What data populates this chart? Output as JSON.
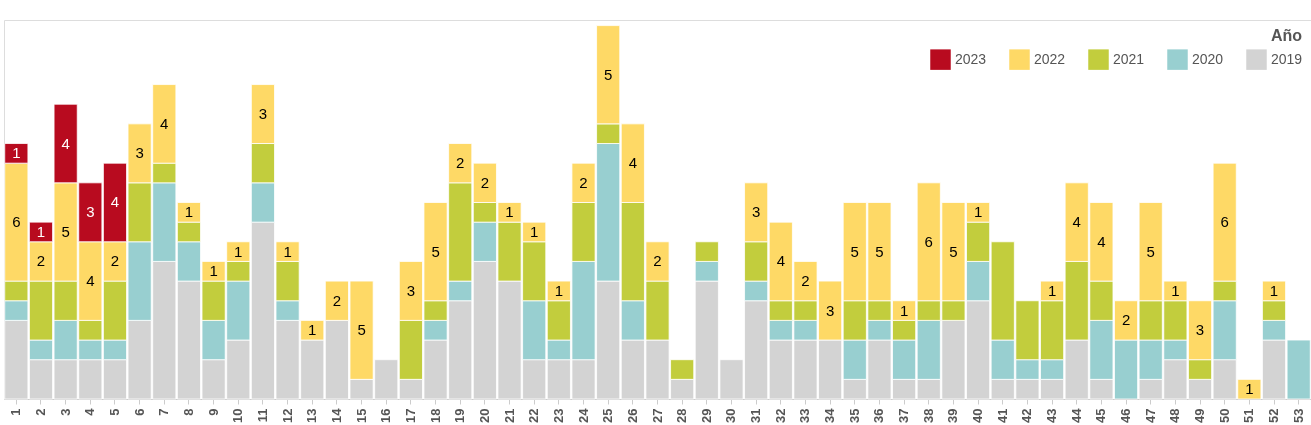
{
  "chart_data": {
    "type": "bar",
    "stacked": true,
    "legend_title": "Año",
    "legend": "top right",
    "grid": false,
    "tick_labels": "x",
    "categories": [
      "1",
      "2",
      "3",
      "4",
      "5",
      "6",
      "7",
      "8",
      "9",
      "10",
      "11",
      "12",
      "13",
      "14",
      "15",
      "16",
      "17",
      "18",
      "19",
      "20",
      "21",
      "22",
      "23",
      "24",
      "25",
      "26",
      "27",
      "28",
      "29",
      "30",
      "31",
      "32",
      "33",
      "34",
      "35",
      "36",
      "37",
      "38",
      "39",
      "40",
      "41",
      "42",
      "43",
      "44",
      "45",
      "46",
      "47",
      "48",
      "49",
      "50",
      "51",
      "52",
      "53"
    ],
    "series": [
      {
        "name": "2019",
        "color": "#d3d3d3",
        "values": [
          4,
          2,
          2,
          2,
          2,
          4,
          7,
          6,
          2,
          3,
          9,
          4,
          3,
          4,
          1,
          2,
          1,
          3,
          5,
          7,
          6,
          2,
          2,
          2,
          6,
          3,
          3,
          1,
          6,
          2,
          5,
          3,
          3,
          3,
          1,
          3,
          1,
          1,
          4,
          5,
          1,
          1,
          1,
          3,
          1,
          null,
          1,
          2,
          1,
          2,
          null,
          3,
          null
        ]
      },
      {
        "name": "2020",
        "color": "#98cfd0",
        "values": [
          1,
          1,
          2,
          1,
          1,
          4,
          4,
          2,
          2,
          3,
          2,
          1,
          null,
          null,
          null,
          null,
          null,
          1,
          1,
          2,
          null,
          3,
          1,
          5,
          7,
          2,
          null,
          null,
          1,
          null,
          1,
          1,
          1,
          null,
          2,
          1,
          2,
          3,
          null,
          2,
          2,
          1,
          1,
          null,
          3,
          3,
          2,
          1,
          null,
          3,
          null,
          1,
          3
        ]
      },
      {
        "name": "2021",
        "color": "#c2cd3d",
        "values": [
          1,
          3,
          2,
          1,
          3,
          3,
          1,
          1,
          2,
          1,
          2,
          2,
          null,
          null,
          null,
          null,
          3,
          1,
          5,
          1,
          3,
          3,
          2,
          3,
          1,
          5,
          3,
          1,
          1,
          null,
          2,
          1,
          1,
          null,
          2,
          1,
          1,
          1,
          1,
          2,
          5,
          3,
          3,
          4,
          2,
          null,
          2,
          2,
          1,
          1,
          null,
          1,
          null
        ]
      },
      {
        "name": "2022",
        "color": "#fed966",
        "values": [
          6,
          2,
          5,
          4,
          2,
          3,
          4,
          1,
          1,
          1,
          3,
          1,
          1,
          2,
          5,
          null,
          3,
          5,
          2,
          2,
          1,
          1,
          1,
          2,
          5,
          4,
          2,
          null,
          null,
          null,
          3,
          4,
          2,
          3,
          5,
          5,
          1,
          6,
          5,
          1,
          null,
          null,
          1,
          4,
          4,
          2,
          5,
          1,
          3,
          6,
          1,
          1,
          null
        ],
        "value_labels": [
          "6",
          "2",
          "5",
          "4",
          "2",
          "3",
          "4",
          "1",
          "1",
          "1",
          "3",
          "1",
          "1",
          "2",
          "5",
          null,
          "3",
          "5",
          "2",
          "2",
          "1",
          "1",
          "1",
          "2",
          "5",
          "4",
          "2",
          null,
          null,
          null,
          "3",
          "4",
          "2",
          "3",
          "5",
          "5",
          "1",
          "6",
          "5",
          "1",
          null,
          null,
          "1",
          "4",
          "4",
          "2",
          "5",
          "1",
          "3",
          "6",
          "1",
          "1",
          null
        ]
      },
      {
        "name": "2023",
        "color": "#b80b1f",
        "values": [
          1,
          1,
          4,
          3,
          4,
          null,
          null,
          null,
          null,
          null,
          null,
          null,
          null,
          null,
          null,
          null,
          null,
          null,
          null,
          null,
          null,
          null,
          null,
          null,
          null,
          null,
          null,
          null,
          null,
          null,
          null,
          null,
          null,
          null,
          null,
          null,
          null,
          null,
          null,
          null,
          null,
          null,
          null,
          null,
          null,
          null,
          null,
          null,
          null,
          null,
          null,
          null,
          null
        ],
        "value_labels": [
          "1",
          "1",
          "4",
          "3",
          "4",
          null,
          null,
          null,
          null,
          null,
          null,
          null,
          null,
          null,
          null,
          null,
          null,
          null,
          null,
          null,
          null,
          null,
          null,
          null,
          null,
          null,
          null,
          null,
          null,
          null,
          null,
          null,
          null,
          null,
          null,
          null,
          null,
          null,
          null,
          null,
          null,
          null,
          null,
          null,
          null,
          null,
          null,
          null,
          null,
          null,
          null,
          null,
          null
        ]
      }
    ]
  }
}
